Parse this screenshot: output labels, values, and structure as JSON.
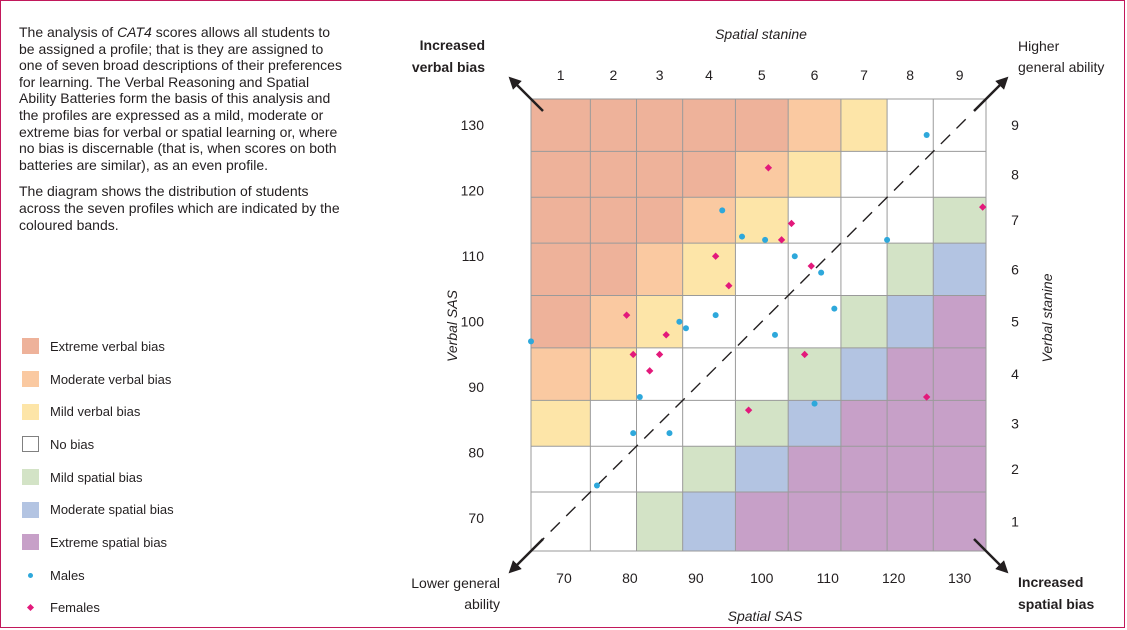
{
  "intro": {
    "paragraph1_prefix": "The analysis of ",
    "paragraph1_italic": "CAT4",
    "paragraph1_suffix": " scores allows all students to be assigned a profile; that is they are assigned to one of seven broad descriptions of their preferences for learning. The Verbal Reasoning and Spatial Ability Batteries form the basis of this analysis and the profiles are expressed as a mild, moderate or extreme bias for verbal or spatial learning or, where no bias is discernable (that is, when scores on both batteries are similar), as an even profile.",
    "paragraph2": "The diagram shows the distribution of students across the seven profiles which are indicated by the coloured bands."
  },
  "legend": {
    "items": [
      {
        "label": "Extreme verbal bias",
        "color": "#eeb29a"
      },
      {
        "label": "Moderate verbal bias",
        "color": "#fac9a1"
      },
      {
        "label": "Mild verbal bias",
        "color": "#fde5a8"
      },
      {
        "label": "No bias",
        "color": "#ffffff"
      },
      {
        "label": "Mild spatial bias",
        "color": "#d3e3c6"
      },
      {
        "label": "Moderate spatial bias",
        "color": "#b3c4e2"
      },
      {
        "label": "Extreme spatial bias",
        "color": "#c7a0c8"
      }
    ],
    "males_label": "Males",
    "females_label": "Females"
  },
  "chart_data": {
    "type": "scatter",
    "xlabel": "Spatial SAS",
    "ylabel": "Verbal SAS",
    "top_axis_label": "Spatial stanine",
    "right_axis_label": "Verbal stanine",
    "x_ticks": [
      70,
      80,
      90,
      100,
      110,
      120,
      130
    ],
    "y_ticks": [
      70,
      80,
      90,
      100,
      110,
      120,
      130
    ],
    "stanines": [
      1,
      2,
      3,
      4,
      5,
      6,
      7,
      8,
      9
    ],
    "xlim": [
      65,
      134
    ],
    "ylim": [
      65,
      134
    ],
    "stanine_bounds": [
      65,
      74,
      81,
      88,
      96,
      104,
      112,
      119,
      126,
      134
    ],
    "corner_labels": {
      "top_left": [
        "Increased",
        "verbal bias"
      ],
      "top_right": [
        "Higher",
        "general ability"
      ],
      "bottom_left": [
        "Lower general",
        "ability"
      ],
      "bottom_right": [
        "Increased",
        "spatial bias"
      ]
    },
    "band_colors": {
      "extreme_verbal": "#eeb29a",
      "moderate_verbal": "#fac9a1",
      "mild_verbal": "#fde5a8",
      "none": "#ffffff",
      "mild_spatial": "#d3e3c6",
      "moderate_spatial": "#b3c4e2",
      "extreme_spatial": "#c7a0c8"
    },
    "series": [
      {
        "name": "Males",
        "color": "#2ea8db",
        "marker": "circle",
        "points": [
          [
            65,
            97
          ],
          [
            75,
            75
          ],
          [
            80.5,
            83
          ],
          [
            81.5,
            88.5
          ],
          [
            86,
            83
          ],
          [
            87.5,
            100
          ],
          [
            88.5,
            99
          ],
          [
            93,
            101
          ],
          [
            94,
            117
          ],
          [
            97,
            113
          ],
          [
            100.5,
            112.5
          ],
          [
            102,
            98
          ],
          [
            105,
            110
          ],
          [
            108,
            87.5
          ],
          [
            109,
            107.5
          ],
          [
            111,
            102
          ],
          [
            119,
            112.5
          ],
          [
            125,
            128.5
          ]
        ]
      },
      {
        "name": "Females",
        "color": "#e3197b",
        "marker": "diamond",
        "points": [
          [
            79.5,
            101
          ],
          [
            80.5,
            95
          ],
          [
            83,
            92.5
          ],
          [
            84.5,
            95
          ],
          [
            85.5,
            98
          ],
          [
            93,
            110
          ],
          [
            95,
            105.5
          ],
          [
            98,
            86.5
          ],
          [
            101,
            123.5
          ],
          [
            103,
            112.5
          ],
          [
            104.5,
            115
          ],
          [
            106.5,
            95
          ],
          [
            107.5,
            108.5
          ],
          [
            125,
            88.5
          ],
          [
            133.5,
            117.5
          ]
        ]
      }
    ]
  }
}
